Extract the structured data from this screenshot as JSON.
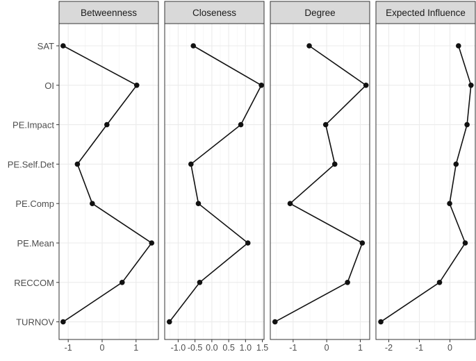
{
  "chart_data": {
    "type": "line",
    "orientation": "horizontal-values",
    "categories": [
      "SAT",
      "OI",
      "PE.Impact",
      "PE.Self.Det",
      "PE.Comp",
      "PE.Mean",
      "RECCOM",
      "TURNOV"
    ],
    "grid": true,
    "colors": {
      "line": "#111111",
      "point": "#111111",
      "strip": "#d9d9d9",
      "strip_border": "#333333",
      "panel_border": "#333333",
      "grid_major": "#ebebeb",
      "grid_minor": "#f5f5f5",
      "tick_text": "#4d4d4d"
    },
    "panels": [
      {
        "title": "Betweenness",
        "xlim": [
          -1.27,
          1.66
        ],
        "ticks": [
          -1,
          0,
          1
        ],
        "tick_labels": [
          "-1",
          "0",
          "1"
        ],
        "values": [
          -1.15,
          1.02,
          0.14,
          -0.73,
          -0.29,
          1.46,
          0.59,
          -1.15
        ]
      },
      {
        "title": "Closeness",
        "xlim": [
          -1.4,
          1.55
        ],
        "ticks": [
          -1.0,
          -0.5,
          0.0,
          0.5,
          1.0,
          1.5
        ],
        "tick_labels": [
          "-1.0",
          "-0.5",
          "0.0",
          "0.5",
          "1.0",
          "1.5"
        ],
        "values": [
          -0.55,
          1.47,
          0.86,
          -0.62,
          -0.4,
          1.07,
          -0.36,
          -1.26
        ]
      },
      {
        "title": "Degree",
        "xlim": [
          -1.68,
          1.28
        ],
        "ticks": [
          -1,
          0,
          1
        ],
        "tick_labels": [
          "-1",
          "0",
          "1"
        ],
        "values": [
          -0.52,
          1.17,
          -0.03,
          0.24,
          -1.09,
          1.06,
          0.62,
          -1.54
        ]
      },
      {
        "title": "Expected Influence",
        "xlim": [
          -2.42,
          0.83
        ],
        "ticks": [
          -2,
          -1,
          0
        ],
        "tick_labels": [
          "-2",
          "-1",
          "0"
        ],
        "values": [
          0.28,
          0.69,
          0.56,
          0.2,
          -0.01,
          0.5,
          -0.34,
          -2.26
        ]
      }
    ]
  }
}
